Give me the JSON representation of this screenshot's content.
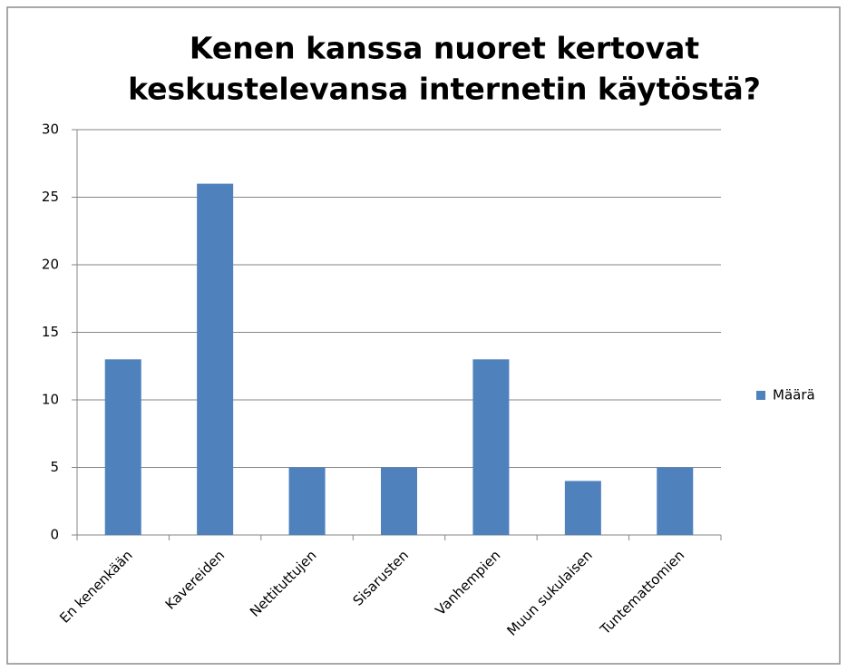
{
  "chart_data": {
    "type": "bar",
    "title": [
      "Kenen kanssa nuoret kertovat",
      "keskustelevansa internetin käytöstä?"
    ],
    "categories": [
      "En kenenkään",
      "Kavereiden",
      "Nettituttujen",
      "Sisarusten",
      "Vanhempien",
      "Muun sukulaisen",
      "Tuntemattomien"
    ],
    "series": [
      {
        "name": "Määrä",
        "color": "#4f81bd",
        "values": [
          13,
          26,
          5,
          5,
          13,
          4,
          5
        ]
      }
    ],
    "ylim": [
      0,
      30
    ],
    "yticks": [
      0,
      5,
      10,
      15,
      20,
      25,
      30
    ],
    "grid": true,
    "legend": "right"
  }
}
